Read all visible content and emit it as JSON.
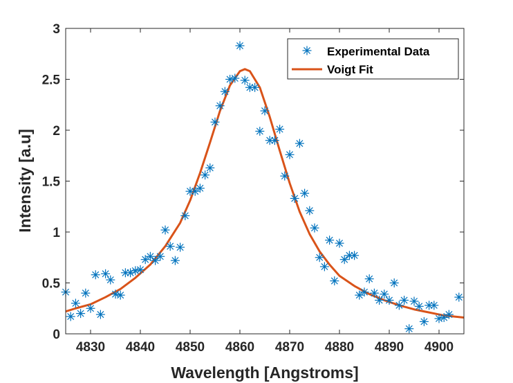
{
  "chart_data": {
    "type": "scatter",
    "xlabel": "Wavelength [Angstroms]",
    "ylabel": "Intensity [a.u]",
    "xlim": [
      4825,
      4905
    ],
    "ylim": [
      0,
      3
    ],
    "xticks": [
      "4830",
      "4840",
      "4850",
      "4860",
      "4870",
      "4880",
      "4890",
      "4900"
    ],
    "yticks": [
      "0",
      "0.5",
      "1",
      "1.5",
      "2",
      "2.5",
      "3"
    ],
    "grid": false,
    "legend_position": "top-right",
    "series": [
      {
        "name": "Experimental Data",
        "kind": "scatter",
        "marker": "asterisk",
        "color": "#0072BD",
        "points": [
          [
            4825,
            0.41
          ],
          [
            4826,
            0.17
          ],
          [
            4827,
            0.3
          ],
          [
            4828,
            0.2
          ],
          [
            4829,
            0.4
          ],
          [
            4830,
            0.25
          ],
          [
            4831,
            0.58
          ],
          [
            4832,
            0.19
          ],
          [
            4833,
            0.59
          ],
          [
            4834,
            0.53
          ],
          [
            4835,
            0.39
          ],
          [
            4836,
            0.38
          ],
          [
            4837,
            0.6
          ],
          [
            4838,
            0.6
          ],
          [
            4839,
            0.62
          ],
          [
            4840,
            0.63
          ],
          [
            4841,
            0.73
          ],
          [
            4842,
            0.76
          ],
          [
            4843,
            0.72
          ],
          [
            4844,
            0.76
          ],
          [
            4845,
            1.02
          ],
          [
            4846,
            0.86
          ],
          [
            4847,
            0.72
          ],
          [
            4848,
            0.85
          ],
          [
            4849,
            1.16
          ],
          [
            4850,
            1.4
          ],
          [
            4851,
            1.4
          ],
          [
            4852,
            1.43
          ],
          [
            4853,
            1.56
          ],
          [
            4854,
            1.63
          ],
          [
            4855,
            2.08
          ],
          [
            4856,
            2.24
          ],
          [
            4857,
            2.38
          ],
          [
            4858,
            2.5
          ],
          [
            4859,
            2.51
          ],
          [
            4860,
            2.83
          ],
          [
            4861,
            2.49
          ],
          [
            4862,
            2.42
          ],
          [
            4863,
            2.42
          ],
          [
            4864,
            1.99
          ],
          [
            4865,
            2.19
          ],
          [
            4866,
            1.9
          ],
          [
            4867,
            1.9
          ],
          [
            4868,
            2.01
          ],
          [
            4869,
            1.55
          ],
          [
            4870,
            1.76
          ],
          [
            4871,
            1.33
          ],
          [
            4872,
            1.87
          ],
          [
            4873,
            1.38
          ],
          [
            4874,
            1.21
          ],
          [
            4875,
            1.04
          ],
          [
            4876,
            0.75
          ],
          [
            4877,
            0.66
          ],
          [
            4878,
            0.92
          ],
          [
            4879,
            0.52
          ],
          [
            4880,
            0.89
          ],
          [
            4881,
            0.73
          ],
          [
            4882,
            0.77
          ],
          [
            4883,
            0.77
          ],
          [
            4884,
            0.38
          ],
          [
            4885,
            0.41
          ],
          [
            4886,
            0.54
          ],
          [
            4887,
            0.4
          ],
          [
            4888,
            0.33
          ],
          [
            4889,
            0.39
          ],
          [
            4890,
            0.33
          ],
          [
            4891,
            0.5
          ],
          [
            4892,
            0.28
          ],
          [
            4893,
            0.33
          ],
          [
            4894,
            0.05
          ],
          [
            4895,
            0.32
          ],
          [
            4896,
            0.27
          ],
          [
            4897,
            0.12
          ],
          [
            4898,
            0.28
          ],
          [
            4899,
            0.28
          ],
          [
            4900,
            0.15
          ],
          [
            4901,
            0.16
          ],
          [
            4902,
            0.19
          ],
          [
            4904,
            0.36
          ]
        ]
      },
      {
        "name": "Voigt Fit",
        "kind": "line",
        "color": "#D95319",
        "points": [
          [
            4825,
            0.22
          ],
          [
            4827,
            0.25
          ],
          [
            4830,
            0.29
          ],
          [
            4833,
            0.36
          ],
          [
            4836,
            0.44
          ],
          [
            4839,
            0.55
          ],
          [
            4842,
            0.68
          ],
          [
            4845,
            0.86
          ],
          [
            4848,
            1.09
          ],
          [
            4850,
            1.31
          ],
          [
            4852,
            1.58
          ],
          [
            4854,
            1.88
          ],
          [
            4856,
            2.19
          ],
          [
            4858,
            2.44
          ],
          [
            4860,
            2.58
          ],
          [
            4861,
            2.6
          ],
          [
            4862,
            2.58
          ],
          [
            4864,
            2.42
          ],
          [
            4866,
            2.13
          ],
          [
            4868,
            1.8
          ],
          [
            4870,
            1.48
          ],
          [
            4872,
            1.2
          ],
          [
            4874,
            0.98
          ],
          [
            4876,
            0.81
          ],
          [
            4878,
            0.68
          ],
          [
            4880,
            0.57
          ],
          [
            4883,
            0.47
          ],
          [
            4886,
            0.39
          ],
          [
            4889,
            0.33
          ],
          [
            4892,
            0.28
          ],
          [
            4895,
            0.24
          ],
          [
            4898,
            0.21
          ],
          [
            4901,
            0.18
          ],
          [
            4905,
            0.16
          ]
        ]
      }
    ]
  }
}
